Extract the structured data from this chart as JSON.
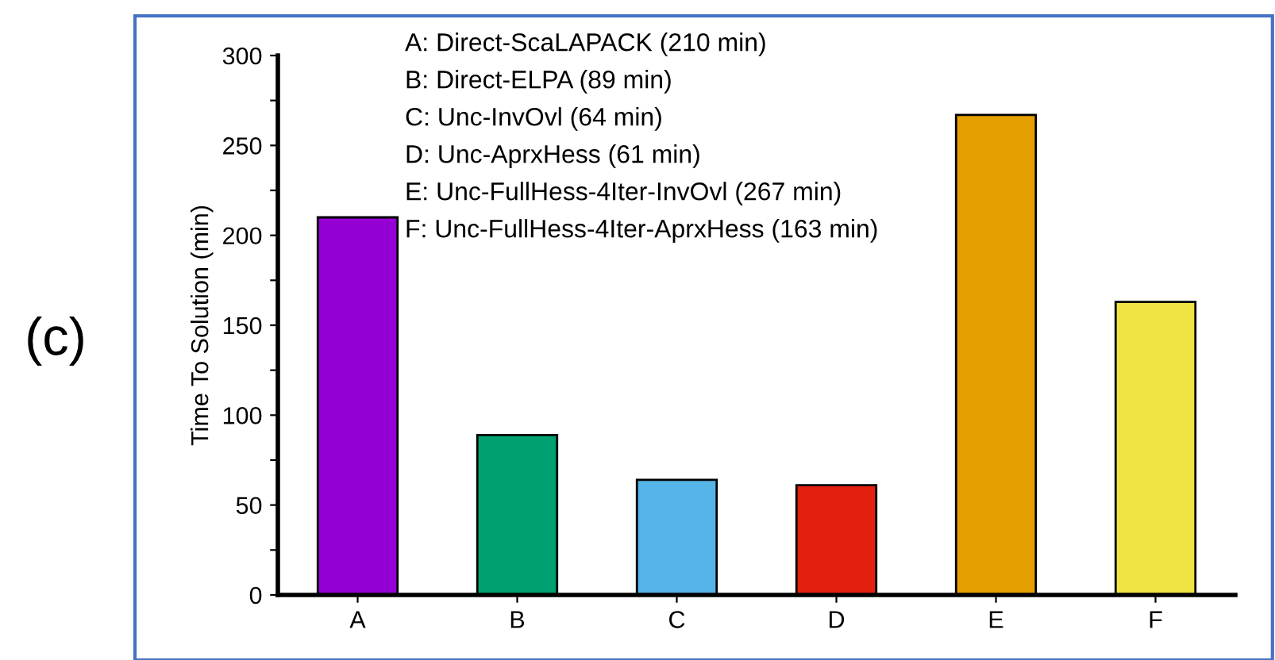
{
  "chart_data": {
    "type": "bar",
    "ylabel": "Time To Solution (min)",
    "categories": [
      "A",
      "B",
      "C",
      "D",
      "E",
      "F"
    ],
    "values": [
      210,
      89,
      64,
      61,
      267,
      163
    ],
    "colors": [
      "#9400d3",
      "#00a070",
      "#56b4e9",
      "#e32010",
      "#e69f00",
      "#f0e442"
    ],
    "ylim": [
      0,
      300
    ],
    "yticks": [
      0,
      {
        "value": 25,
        "label": null
      },
      50,
      {
        "value": 75,
        "label": null
      },
      100,
      {
        "value": 125,
        "label": null
      },
      150,
      {
        "value": 175,
        "label": null
      },
      200,
      {
        "value": 225,
        "label": null
      },
      250,
      {
        "value": 275,
        "label": null
      },
      300
    ],
    "grid": false,
    "legend": false,
    "annotations": [
      "(c)",
      "A: Direct-ScaLAPACK (210 min)",
      "B: Direct-ELPA (89 min)",
      "C: Unc-InvOvl (64 min)",
      "D: Unc-AprxHess (61 min)",
      "E: Unc-FullHess-4Iter-InvOvl (267 min)",
      "F: Unc-FullHess-4Iter-AprxHess (163 min)"
    ]
  }
}
